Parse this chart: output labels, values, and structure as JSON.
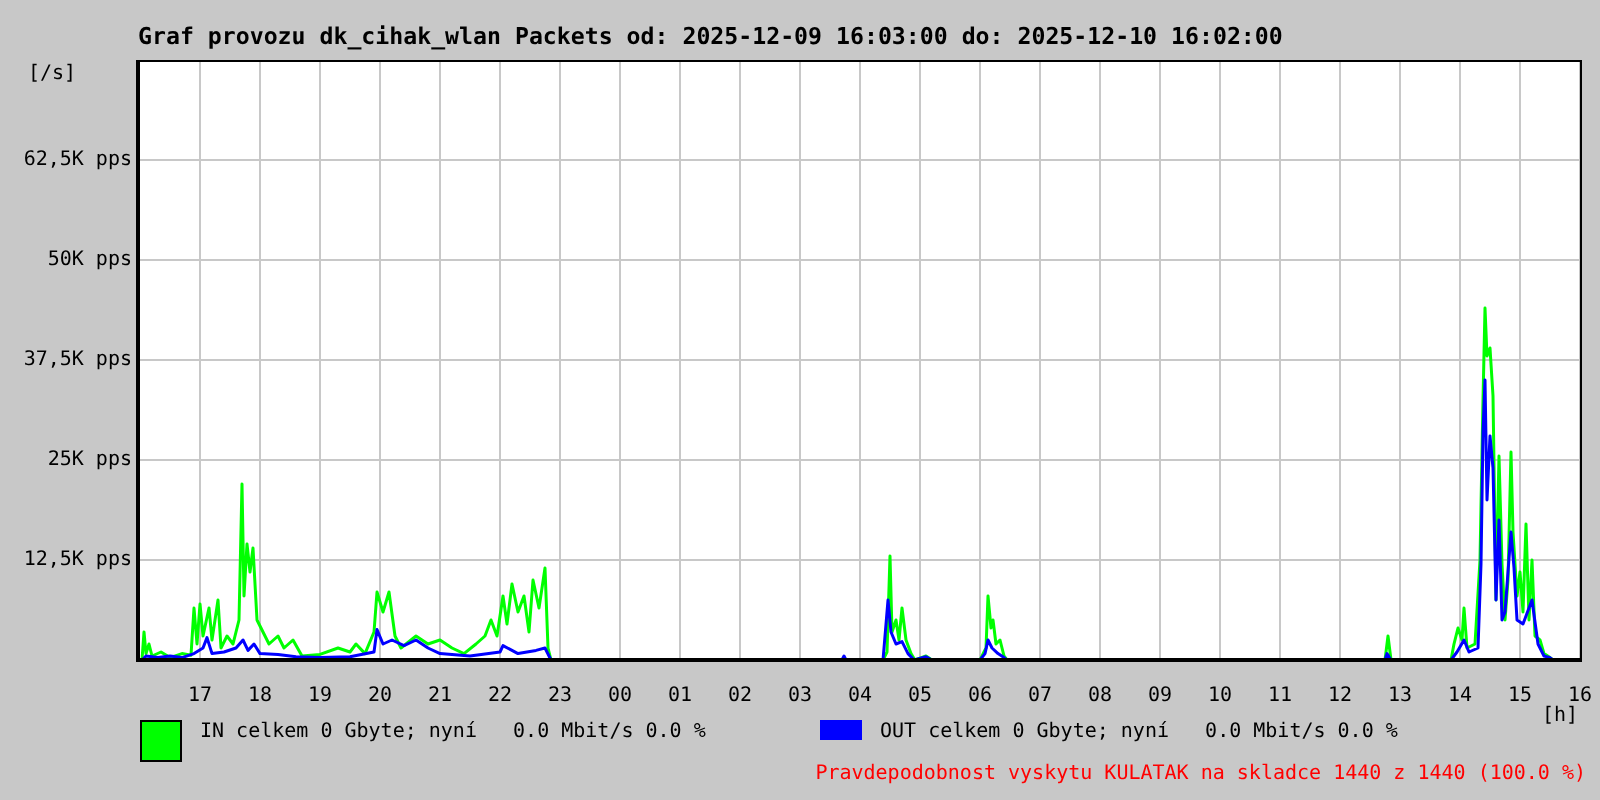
{
  "chart_data": {
    "type": "line",
    "title": "Graf provozu dk_cihak_wlan Packets od: 2025-12-09 16:03:00 do: 2025-12-10 16:02:00",
    "xlabel": "[h]",
    "ylabel": "[/s]",
    "annotations": [
      "Pravdepodobnost vyskytu KULATAK na skladce 1440 z 1440 (100.0 %)"
    ],
    "xlim": [
      "2025-12-09T16:00",
      "2025-12-10T16:00"
    ],
    "xticks": [
      {
        "value": "2025-12-09T17:00",
        "label": "17"
      },
      {
        "value": "2025-12-09T18:00",
        "label": "18"
      },
      {
        "value": "2025-12-09T19:00",
        "label": "19"
      },
      {
        "value": "2025-12-09T20:00",
        "label": "20"
      },
      {
        "value": "2025-12-09T21:00",
        "label": "21"
      },
      {
        "value": "2025-12-09T22:00",
        "label": "22"
      },
      {
        "value": "2025-12-09T23:00",
        "label": "23"
      },
      {
        "value": "2025-12-10T00:00",
        "label": "00"
      },
      {
        "value": "2025-12-10T01:00",
        "label": "01"
      },
      {
        "value": "2025-12-10T02:00",
        "label": "02"
      },
      {
        "value": "2025-12-10T03:00",
        "label": "03"
      },
      {
        "value": "2025-12-10T04:00",
        "label": "04"
      },
      {
        "value": "2025-12-10T05:00",
        "label": "05"
      },
      {
        "value": "2025-12-10T06:00",
        "label": "06"
      },
      {
        "value": "2025-12-10T07:00",
        "label": "07"
      },
      {
        "value": "2025-12-10T08:00",
        "label": "08"
      },
      {
        "value": "2025-12-10T09:00",
        "label": "09"
      },
      {
        "value": "2025-12-10T10:00",
        "label": "10"
      },
      {
        "value": "2025-12-10T11:00",
        "label": "11"
      },
      {
        "value": "2025-12-10T12:00",
        "label": "12"
      },
      {
        "value": "2025-12-10T13:00",
        "label": "13"
      },
      {
        "value": "2025-12-10T14:00",
        "label": "14"
      },
      {
        "value": "2025-12-10T15:00",
        "label": "15"
      },
      {
        "value": "2025-12-10T16:00",
        "label": "16"
      }
    ],
    "ylim": [
      0,
      75000
    ],
    "yticks": [
      {
        "value": 12500,
        "label": "12,5K pps"
      },
      {
        "value": 25000,
        "label": "25K pps"
      },
      {
        "value": 37500,
        "label": "37,5K pps"
      },
      {
        "value": 50000,
        "label": "50K pps"
      },
      {
        "value": 62500,
        "label": "62,5K pps"
      }
    ],
    "grid": true,
    "legend": "bottom",
    "series": [
      {
        "name": "IN celkem 0 Gbyte; nyní   0.0 Mbit/s 0.0 %",
        "color": "#00ff00",
        "x": [
          "2025-12-09T16:02",
          "2025-12-09T16:04",
          "2025-12-09T16:06",
          "2025-12-09T16:09",
          "2025-12-09T16:12",
          "2025-12-09T16:21",
          "2025-12-09T16:30",
          "2025-12-09T16:42",
          "2025-12-09T16:51",
          "2025-12-09T16:54",
          "2025-12-09T16:57",
          "2025-12-09T17:00",
          "2025-12-09T17:03",
          "2025-12-09T17:09",
          "2025-12-09T17:12",
          "2025-12-09T17:18",
          "2025-12-09T17:21",
          "2025-12-09T17:27",
          "2025-12-09T17:33",
          "2025-12-09T17:39",
          "2025-12-09T17:42",
          "2025-12-09T17:44",
          "2025-12-09T17:47",
          "2025-12-09T17:50",
          "2025-12-09T17:53",
          "2025-12-09T17:57",
          "2025-12-09T18:03",
          "2025-12-09T18:09",
          "2025-12-09T18:18",
          "2025-12-09T18:24",
          "2025-12-09T18:33",
          "2025-12-09T18:42",
          "2025-12-09T19:00",
          "2025-12-09T19:18",
          "2025-12-09T19:30",
          "2025-12-09T19:36",
          "2025-12-09T19:45",
          "2025-12-09T19:54",
          "2025-12-09T19:57",
          "2025-12-09T20:03",
          "2025-12-09T20:09",
          "2025-12-09T20:15",
          "2025-12-09T20:21",
          "2025-12-09T20:36",
          "2025-12-09T20:48",
          "2025-12-09T21:00",
          "2025-12-09T21:12",
          "2025-12-09T21:24",
          "2025-12-09T21:36",
          "2025-12-09T21:45",
          "2025-12-09T21:51",
          "2025-12-09T21:57",
          "2025-12-09T22:03",
          "2025-12-09T22:07",
          "2025-12-09T22:12",
          "2025-12-09T22:18",
          "2025-12-09T22:24",
          "2025-12-09T22:29",
          "2025-12-09T22:33",
          "2025-12-09T22:39",
          "2025-12-09T22:45",
          "2025-12-09T22:48",
          "2025-12-09T22:51",
          "2025-12-10T04:23",
          "2025-12-10T04:27",
          "2025-12-10T04:30",
          "2025-12-10T04:32",
          "2025-12-10T04:36",
          "2025-12-10T04:39",
          "2025-12-10T04:42",
          "2025-12-10T04:46",
          "2025-12-10T04:51",
          "2025-12-10T04:55",
          "2025-12-10T05:06",
          "2025-12-10T05:12",
          "2025-12-10T06:00",
          "2025-12-10T06:06",
          "2025-12-10T06:08",
          "2025-12-10T06:11",
          "2025-12-10T06:13",
          "2025-12-10T06:16",
          "2025-12-10T06:20",
          "2025-12-10T06:24",
          "2025-12-10T06:27",
          "2025-12-10T12:45",
          "2025-12-10T12:48",
          "2025-12-10T12:51",
          "2025-12-10T13:51",
          "2025-12-10T13:54",
          "2025-12-10T13:58",
          "2025-12-10T14:02",
          "2025-12-10T14:04",
          "2025-12-10T14:07",
          "2025-12-10T14:15",
          "2025-12-10T14:20",
          "2025-12-10T14:23",
          "2025-12-10T14:25",
          "2025-12-10T14:27",
          "2025-12-10T14:30",
          "2025-12-10T14:33",
          "2025-12-10T14:36",
          "2025-12-10T14:39",
          "2025-12-10T14:42",
          "2025-12-10T14:45",
          "2025-12-10T14:48",
          "2025-12-10T14:51",
          "2025-12-10T14:53",
          "2025-12-10T14:57",
          "2025-12-10T15:00",
          "2025-12-10T15:03",
          "2025-12-10T15:06",
          "2025-12-10T15:09",
          "2025-12-10T15:12",
          "2025-12-10T15:15",
          "2025-12-10T15:20",
          "2025-12-10T15:24",
          "2025-12-10T15:30",
          "2025-12-10T15:33"
        ],
        "values": [
          0,
          3500,
          800,
          2000,
          500,
          1000,
          300,
          800,
          600,
          6500,
          2000,
          7000,
          3000,
          6500,
          2500,
          7500,
          1500,
          3000,
          2000,
          5000,
          22000,
          8000,
          14500,
          11000,
          14000,
          5000,
          3500,
          2000,
          3000,
          1500,
          2500,
          500,
          700,
          1500,
          1000,
          2000,
          800,
          3500,
          8500,
          6000,
          8500,
          3000,
          1500,
          3000,
          2000,
          2500,
          1500,
          800,
          2000,
          3000,
          5000,
          3000,
          8000,
          4500,
          9500,
          6000,
          8000,
          3500,
          10000,
          6500,
          11500,
          1500,
          0,
          0,
          1000,
          13000,
          3500,
          5000,
          2500,
          6500,
          2500,
          800,
          0,
          500,
          0,
          0,
          1500,
          8000,
          4000,
          5000,
          2000,
          2500,
          500,
          0,
          0,
          3000,
          0,
          0,
          2000,
          4000,
          2500,
          6500,
          1500,
          2000,
          12500,
          32500,
          44000,
          38000,
          39000,
          33000,
          7500,
          25500,
          12000,
          5000,
          10000,
          26000,
          16000,
          8000,
          11000,
          6000,
          17000,
          5000,
          12500,
          3000,
          2500,
          800,
          300,
          0
        ]
      },
      {
        "name": "OUT celkem 0 Gbyte; nyní   0.0 Mbit/s 0.0 %",
        "color": "#0000ff",
        "x": [
          "2025-12-09T16:02",
          "2025-12-09T16:06",
          "2025-12-09T16:18",
          "2025-12-09T16:30",
          "2025-12-09T16:42",
          "2025-12-09T16:54",
          "2025-12-09T17:03",
          "2025-12-09T17:07",
          "2025-12-09T17:12",
          "2025-12-09T17:24",
          "2025-12-09T17:36",
          "2025-12-09T17:43",
          "2025-12-09T17:48",
          "2025-12-09T17:54",
          "2025-12-09T18:00",
          "2025-12-09T18:18",
          "2025-12-09T18:36",
          "2025-12-09T19:00",
          "2025-12-09T19:30",
          "2025-12-09T19:54",
          "2025-12-09T19:57",
          "2025-12-09T20:03",
          "2025-12-09T20:12",
          "2025-12-09T20:24",
          "2025-12-09T20:36",
          "2025-12-09T20:48",
          "2025-12-09T21:00",
          "2025-12-09T21:30",
          "2025-12-09T22:00",
          "2025-12-09T22:03",
          "2025-12-09T22:18",
          "2025-12-09T22:36",
          "2025-12-09T22:45",
          "2025-12-09T22:51",
          "2025-12-10T03:42",
          "2025-12-10T03:44",
          "2025-12-10T03:46",
          "2025-12-10T04:23",
          "2025-12-10T04:28",
          "2025-12-10T04:31",
          "2025-12-10T04:36",
          "2025-12-10T04:42",
          "2025-12-10T04:48",
          "2025-12-10T04:54",
          "2025-12-10T05:06",
          "2025-12-10T05:12",
          "2025-12-10T06:00",
          "2025-12-10T06:05",
          "2025-12-10T06:08",
          "2025-12-10T06:12",
          "2025-12-10T06:18",
          "2025-12-10T06:24",
          "2025-12-10T06:27",
          "2025-12-10T12:45",
          "2025-12-10T12:47",
          "2025-12-10T12:51",
          "2025-12-10T13:51",
          "2025-12-10T13:57",
          "2025-12-10T14:04",
          "2025-12-10T14:09",
          "2025-12-10T14:18",
          "2025-12-10T14:21",
          "2025-12-10T14:23",
          "2025-12-10T14:25",
          "2025-12-10T14:27",
          "2025-12-10T14:30",
          "2025-12-10T14:33",
          "2025-12-10T14:36",
          "2025-12-10T14:39",
          "2025-12-10T14:42",
          "2025-12-10T14:45",
          "2025-12-10T14:51",
          "2025-12-10T14:54",
          "2025-12-10T14:57",
          "2025-12-10T15:03",
          "2025-12-10T15:12",
          "2025-12-10T15:18",
          "2025-12-10T15:24",
          "2025-12-10T15:30",
          "2025-12-10T15:33"
        ],
        "values": [
          0,
          500,
          300,
          500,
          300,
          800,
          1500,
          2800,
          800,
          1000,
          1500,
          2500,
          1200,
          2000,
          800,
          700,
          400,
          300,
          400,
          1000,
          3800,
          2000,
          2500,
          1800,
          2500,
          1500,
          800,
          500,
          1000,
          1800,
          800,
          1200,
          1500,
          0,
          0,
          500,
          0,
          0,
          7500,
          3500,
          2000,
          2300,
          800,
          0,
          400,
          0,
          0,
          800,
          2500,
          1500,
          800,
          300,
          0,
          0,
          800,
          0,
          0,
          1000,
          2500,
          1000,
          1500,
          12000,
          28500,
          35000,
          20000,
          28000,
          24000,
          7500,
          17500,
          5000,
          6000,
          16000,
          11500,
          5000,
          4500,
          7500,
          2000,
          500,
          300,
          0
        ]
      }
    ]
  }
}
